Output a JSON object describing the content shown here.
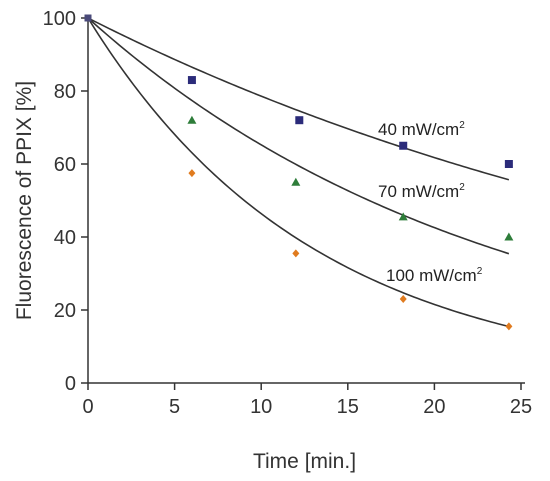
{
  "chart_data": {
    "type": "scatter",
    "xlabel": "Time [min.]",
    "ylabel": "Fluorescence of PPIX [%]",
    "xlim": [
      0,
      25
    ],
    "ylim": [
      0,
      100
    ],
    "xticks": [
      0,
      5,
      10,
      15,
      20,
      25
    ],
    "yticks": [
      0,
      20,
      40,
      60,
      80,
      100
    ],
    "grid": false,
    "series": [
      {
        "name": "40 mW/cm2",
        "label_main": "40 mW/cm",
        "label_sup": "2",
        "marker": "square",
        "color": "#2b2b7a",
        "x": [
          0,
          6,
          12.2,
          18.2,
          24.3
        ],
        "y": [
          100,
          83,
          72,
          65,
          60
        ],
        "decay_k": 0.0241
      },
      {
        "name": "70 mW/cm2",
        "label_main": "70 mW/cm",
        "label_sup": "2",
        "marker": "triangle",
        "color": "#2e7d3a",
        "x": [
          0,
          6,
          12,
          18.2,
          24.3
        ],
        "y": [
          100,
          72,
          55,
          45.5,
          40
        ],
        "decay_k": 0.0427
      },
      {
        "name": "100 mW/cm2",
        "label_main": "100 mW/cm",
        "label_sup": "2",
        "marker": "diamond",
        "color": "#e07b1f",
        "x": [
          0,
          6,
          12,
          18.2,
          24.3
        ],
        "y": [
          100,
          57.5,
          35.5,
          23,
          15.5
        ],
        "decay_k": 0.0768
      }
    ]
  }
}
